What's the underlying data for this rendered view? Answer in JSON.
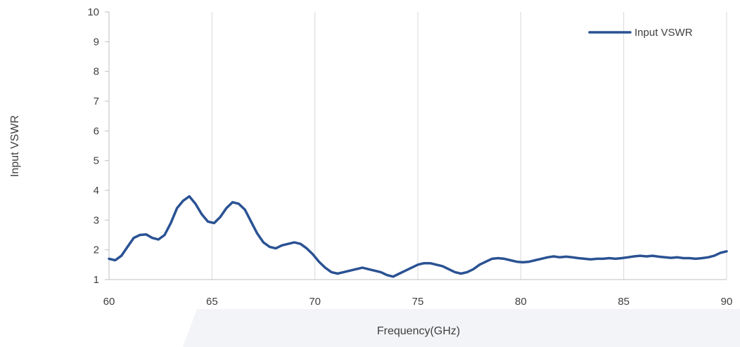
{
  "chart_data": {
    "type": "line",
    "xlabel": "Frequency(GHz)",
    "ylabel": "Input VSWR",
    "xlim": [
      60,
      90
    ],
    "ylim": [
      1,
      10
    ],
    "x_ticks": [
      60,
      65,
      70,
      75,
      80,
      85,
      90
    ],
    "y_ticks": [
      1,
      2,
      3,
      4,
      5,
      6,
      7,
      8,
      9,
      10
    ],
    "grid": "vertical",
    "legend_position": "top-right",
    "series_color": "#2a5293",
    "series": [
      {
        "name": "Input VSWR",
        "x": [
          60,
          60.3,
          60.6,
          60.9,
          61.2,
          61.5,
          61.8,
          62.1,
          62.4,
          62.7,
          63.0,
          63.3,
          63.6,
          63.9,
          64.2,
          64.5,
          64.8,
          65.1,
          65.4,
          65.7,
          66.0,
          66.3,
          66.6,
          66.9,
          67.2,
          67.5,
          67.8,
          68.1,
          68.4,
          68.7,
          69.0,
          69.3,
          69.6,
          69.9,
          70.2,
          70.5,
          70.8,
          71.1,
          71.4,
          71.7,
          72.0,
          72.3,
          72.6,
          72.9,
          73.2,
          73.5,
          73.8,
          74.1,
          74.4,
          74.7,
          75.0,
          75.3,
          75.6,
          75.9,
          76.2,
          76.5,
          76.8,
          77.1,
          77.4,
          77.7,
          78.0,
          78.3,
          78.6,
          78.9,
          79.2,
          79.5,
          79.8,
          80.1,
          80.4,
          80.7,
          81.0,
          81.3,
          81.6,
          81.9,
          82.2,
          82.5,
          82.8,
          83.1,
          83.4,
          83.7,
          84.0,
          84.3,
          84.6,
          84.9,
          85.2,
          85.5,
          85.8,
          86.1,
          86.4,
          86.7,
          87.0,
          87.3,
          87.6,
          87.9,
          88.2,
          88.5,
          88.8,
          89.1,
          89.4,
          89.7,
          90.0
        ],
        "values": [
          1.7,
          1.65,
          1.8,
          2.1,
          2.4,
          2.5,
          2.52,
          2.4,
          2.35,
          2.5,
          2.9,
          3.4,
          3.65,
          3.8,
          3.55,
          3.2,
          2.95,
          2.9,
          3.1,
          3.4,
          3.6,
          3.55,
          3.35,
          2.95,
          2.55,
          2.25,
          2.1,
          2.05,
          2.15,
          2.2,
          2.25,
          2.2,
          2.05,
          1.85,
          1.6,
          1.4,
          1.25,
          1.2,
          1.25,
          1.3,
          1.35,
          1.4,
          1.35,
          1.3,
          1.25,
          1.15,
          1.1,
          1.2,
          1.3,
          1.4,
          1.5,
          1.55,
          1.55,
          1.5,
          1.45,
          1.35,
          1.25,
          1.2,
          1.25,
          1.35,
          1.5,
          1.6,
          1.7,
          1.72,
          1.7,
          1.65,
          1.6,
          1.58,
          1.6,
          1.65,
          1.7,
          1.75,
          1.78,
          1.75,
          1.77,
          1.75,
          1.72,
          1.7,
          1.68,
          1.7,
          1.7,
          1.72,
          1.7,
          1.72,
          1.75,
          1.78,
          1.8,
          1.78,
          1.8,
          1.77,
          1.75,
          1.73,
          1.75,
          1.72,
          1.72,
          1.7,
          1.72,
          1.75,
          1.8,
          1.9,
          1.95
        ]
      }
    ]
  }
}
